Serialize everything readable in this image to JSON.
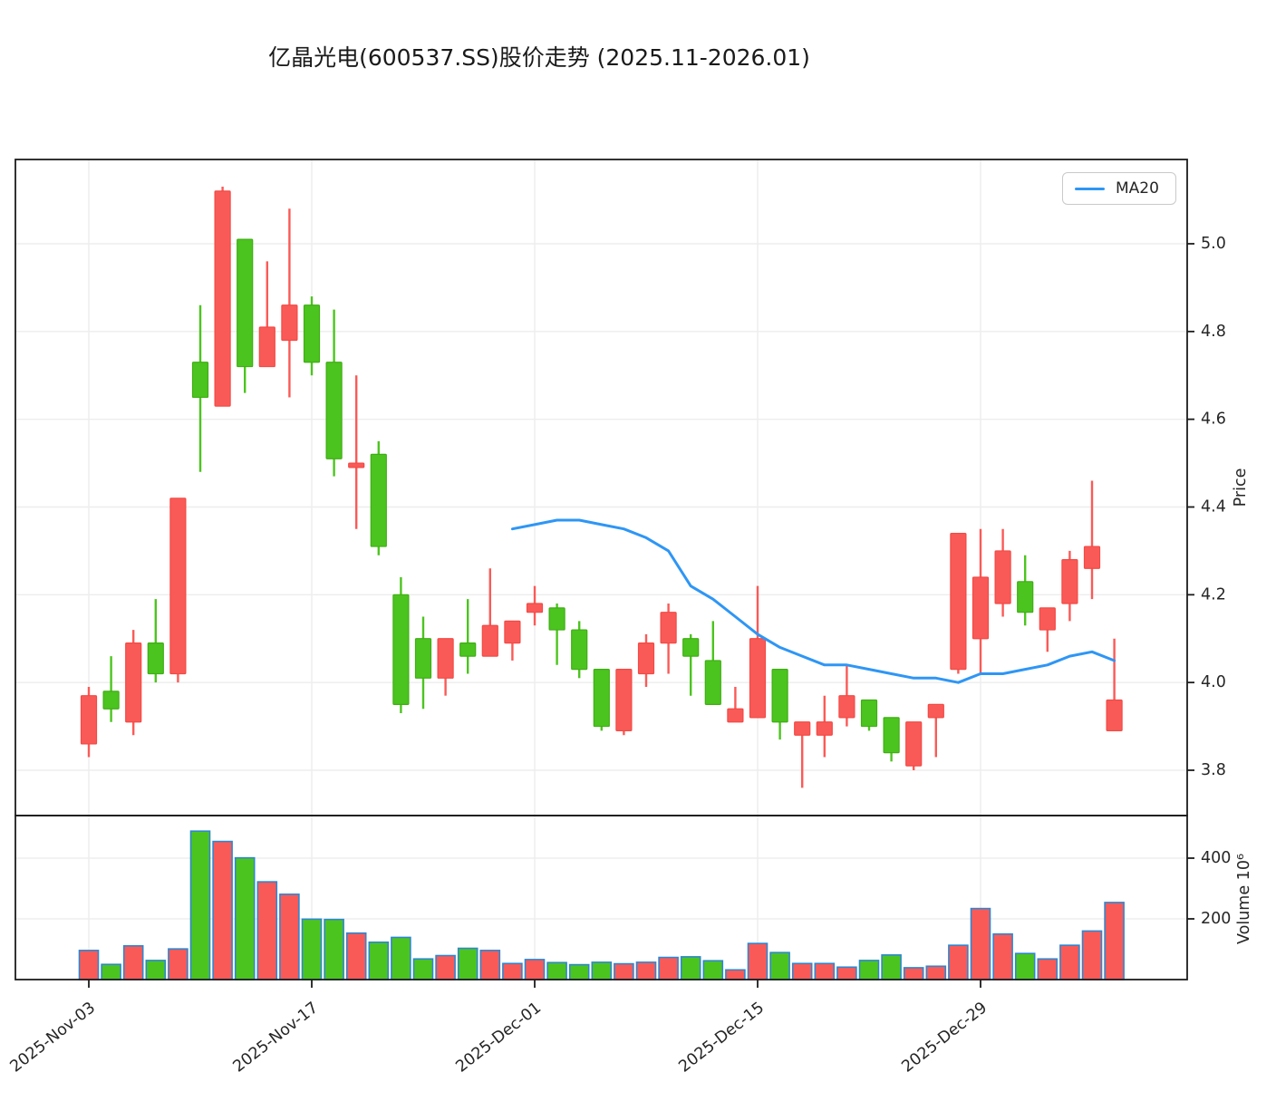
{
  "title": "亿晶光电(600537.SS)股价走势 (2025.11-2026.01)",
  "legend": {
    "ma_label": "MA20"
  },
  "axes": {
    "price": {
      "label": "Price",
      "ticks": [
        "5.0",
        "4.8",
        "4.6",
        "4.4",
        "4.2",
        "4.0",
        "3.8"
      ]
    },
    "volume": {
      "label": "Volume 10⁶",
      "ticks": [
        "400",
        "200"
      ]
    },
    "x": {
      "labels": [
        "2025-Nov-03",
        "2025-Nov-17",
        "2025-Dec-01",
        "2025-Dec-15",
        "2025-Dec-29"
      ],
      "indices": [
        0,
        10,
        20,
        30,
        40
      ]
    }
  },
  "colors": {
    "up": "#4cc41f",
    "up_edge": "#3fae14",
    "down": "#fa5a57",
    "down_edge": "#f24a45",
    "ma_line": "#2e96f5",
    "volume_bar_edge": "#2d87cf",
    "grid": "#ededed",
    "spine": "#1c1c1c",
    "text": "#262626"
  },
  "chart_data": {
    "type": "candlestick",
    "panels": [
      "price",
      "volume"
    ],
    "price_ylim": [
      3.7,
      5.19
    ],
    "volume_ylim": [
      0,
      540
    ],
    "ma_period_label": "MA20",
    "dates": [
      "2025-11-03",
      "2025-11-04",
      "2025-11-05",
      "2025-11-06",
      "2025-11-07",
      "2025-11-10",
      "2025-11-11",
      "2025-11-12",
      "2025-11-13",
      "2025-11-14",
      "2025-11-17",
      "2025-11-18",
      "2025-11-19",
      "2025-11-20",
      "2025-11-21",
      "2025-11-24",
      "2025-11-25",
      "2025-11-26",
      "2025-11-27",
      "2025-11-28",
      "2025-12-01",
      "2025-12-02",
      "2025-12-03",
      "2025-12-04",
      "2025-12-05",
      "2025-12-08",
      "2025-12-09",
      "2025-12-10",
      "2025-12-11",
      "2025-12-12",
      "2025-12-15",
      "2025-12-16",
      "2025-12-17",
      "2025-12-18",
      "2025-12-19",
      "2025-12-22",
      "2025-12-23",
      "2025-12-24",
      "2025-12-25",
      "2025-12-26",
      "2025-12-29",
      "2025-12-30",
      "2025-12-31",
      "2026-01-01",
      "2026-01-02",
      "2026-01-05",
      "2026-01-06"
    ],
    "ohlc": [
      [
        3.97,
        3.99,
        3.83,
        3.86
      ],
      [
        3.94,
        4.06,
        3.91,
        3.98
      ],
      [
        4.09,
        4.12,
        3.88,
        3.91
      ],
      [
        4.02,
        4.19,
        4.0,
        4.09
      ],
      [
        4.42,
        4.42,
        4.0,
        4.02
      ],
      [
        4.65,
        4.86,
        4.48,
        4.73
      ],
      [
        5.12,
        5.13,
        4.63,
        4.63
      ],
      [
        4.72,
        5.01,
        4.66,
        5.01
      ],
      [
        4.81,
        4.96,
        4.72,
        4.72
      ],
      [
        4.86,
        5.08,
        4.65,
        4.78
      ],
      [
        4.73,
        4.88,
        4.7,
        4.86
      ],
      [
        4.51,
        4.85,
        4.47,
        4.73
      ],
      [
        4.5,
        4.7,
        4.35,
        4.49
      ],
      [
        4.31,
        4.55,
        4.29,
        4.52
      ],
      [
        3.95,
        4.24,
        3.93,
        4.2
      ],
      [
        4.01,
        4.15,
        3.94,
        4.1
      ],
      [
        4.1,
        4.1,
        3.97,
        4.01
      ],
      [
        4.06,
        4.19,
        4.02,
        4.09
      ],
      [
        4.13,
        4.26,
        4.06,
        4.06
      ],
      [
        4.14,
        4.14,
        4.05,
        4.09
      ],
      [
        4.18,
        4.22,
        4.13,
        4.16
      ],
      [
        4.12,
        4.18,
        4.04,
        4.17
      ],
      [
        4.03,
        4.14,
        4.01,
        4.12
      ],
      [
        3.9,
        4.03,
        3.89,
        4.03
      ],
      [
        4.03,
        4.03,
        3.88,
        3.89
      ],
      [
        4.09,
        4.11,
        3.99,
        4.02
      ],
      [
        4.16,
        4.18,
        4.02,
        4.09
      ],
      [
        4.06,
        4.11,
        3.97,
        4.1
      ],
      [
        3.95,
        4.14,
        3.95,
        4.05
      ],
      [
        3.94,
        3.99,
        3.91,
        3.91
      ],
      [
        4.1,
        4.22,
        3.92,
        3.92
      ],
      [
        3.91,
        4.03,
        3.87,
        4.03
      ],
      [
        3.91,
        3.91,
        3.76,
        3.88
      ],
      [
        3.91,
        3.97,
        3.83,
        3.88
      ],
      [
        3.97,
        4.04,
        3.9,
        3.92
      ],
      [
        3.9,
        3.96,
        3.89,
        3.96
      ],
      [
        3.84,
        3.92,
        3.82,
        3.92
      ],
      [
        3.91,
        3.91,
        3.8,
        3.81
      ],
      [
        3.95,
        3.95,
        3.83,
        3.92
      ],
      [
        4.34,
        4.34,
        4.02,
        4.03
      ],
      [
        4.24,
        4.35,
        4.02,
        4.1
      ],
      [
        4.3,
        4.35,
        4.15,
        4.18
      ],
      [
        4.16,
        4.29,
        4.13,
        4.23
      ],
      [
        4.17,
        4.17,
        4.07,
        4.12
      ],
      [
        4.28,
        4.3,
        4.14,
        4.18
      ],
      [
        4.31,
        4.46,
        4.19,
        4.26
      ],
      [
        3.96,
        4.1,
        3.89,
        3.89
      ]
    ],
    "volume": [
      96,
      50,
      111,
      63,
      101,
      489,
      455,
      401,
      322,
      281,
      199,
      198,
      153,
      123,
      139,
      68,
      79,
      103,
      96,
      53,
      66,
      56,
      49,
      57,
      52,
      57,
      73,
      75,
      62,
      32,
      119,
      89,
      53,
      53,
      41,
      63,
      81,
      39,
      44,
      113,
      234,
      150,
      86,
      68,
      113,
      160,
      254
    ],
    "ma20": [
      null,
      null,
      null,
      null,
      null,
      null,
      null,
      null,
      null,
      null,
      null,
      null,
      null,
      null,
      null,
      null,
      null,
      null,
      null,
      4.35,
      4.36,
      4.37,
      4.37,
      4.36,
      4.35,
      4.33,
      4.3,
      4.22,
      4.19,
      4.15,
      4.11,
      4.08,
      4.06,
      4.04,
      4.04,
      4.03,
      4.02,
      4.01,
      4.01,
      4.0,
      4.02,
      4.02,
      4.03,
      4.04,
      4.06,
      4.07,
      4.05
    ]
  }
}
